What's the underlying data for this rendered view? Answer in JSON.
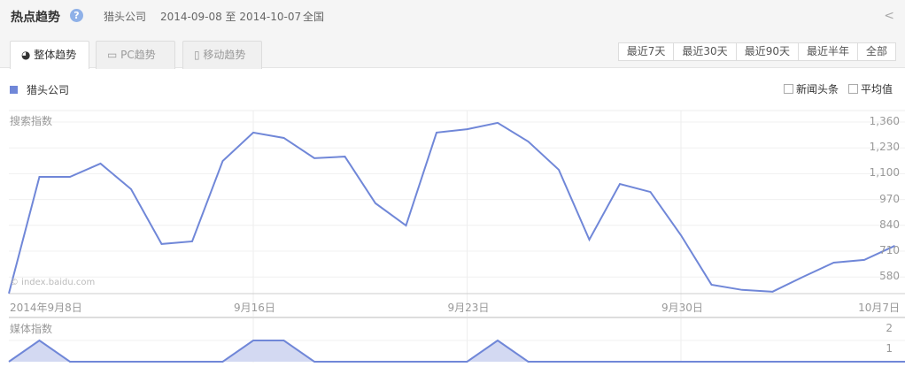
{
  "header": {
    "title": "热点趋势",
    "help_icon": "?",
    "keyword": "猎头公司",
    "date_range": "2014-09-08 至 2014-10-07",
    "region": "全国",
    "share_icon": "share-icon"
  },
  "tabs": [
    {
      "label": "整体趋势",
      "icon": "pie-icon",
      "active": true
    },
    {
      "label": "PC趋势",
      "icon": "monitor-icon"
    },
    {
      "label": "移动趋势",
      "icon": "phone-icon"
    }
  ],
  "ranges": [
    "最近7天",
    "最近30天",
    "最近90天",
    "最近半年",
    "全部"
  ],
  "legend": {
    "series": "猎头公司",
    "color": "#7087d8"
  },
  "checkboxes": [
    {
      "label": "新闻头条",
      "checked": false
    },
    {
      "label": "平均值",
      "checked": false
    }
  ],
  "watermark": "© index.baidu.com",
  "chart_data": [
    {
      "type": "line",
      "ylabel": "搜索指数",
      "yticks": [
        1360,
        1230,
        1100,
        970,
        840,
        710,
        580
      ],
      "xticks": [
        "2014年9月8日",
        "9月16日",
        "9月23日",
        "9月30日",
        "10月7日"
      ],
      "x": [
        "9/8",
        "9/9",
        "9/10",
        "9/11",
        "9/12",
        "9/13",
        "9/14",
        "9/15",
        "9/16",
        "9/17",
        "9/18",
        "9/19",
        "9/20",
        "9/21",
        "9/22",
        "9/23",
        "9/24",
        "9/25",
        "9/26",
        "9/27",
        "9/28",
        "9/29",
        "9/30",
        "10/1",
        "10/2",
        "10/3",
        "10/4",
        "10/5",
        "10/6",
        "10/7"
      ],
      "values": [
        497,
        1084,
        1084,
        1151,
        1022,
        746,
        759,
        1164,
        1307,
        1280,
        1178,
        1186,
        951,
        839,
        1307,
        1324,
        1356,
        1262,
        1120,
        768,
        1048,
        1008,
        790,
        541,
        515,
        506,
        581,
        652,
        666,
        737
      ]
    },
    {
      "type": "area",
      "ylabel": "媒体指数",
      "yticks": [
        2,
        1
      ],
      "values": [
        0,
        1,
        0,
        0,
        0,
        0,
        0,
        0,
        1,
        1,
        0,
        0,
        0,
        0,
        0,
        0,
        1,
        0,
        0,
        0,
        0,
        0,
        0,
        0,
        0,
        0,
        0,
        0,
        0,
        0
      ]
    }
  ]
}
